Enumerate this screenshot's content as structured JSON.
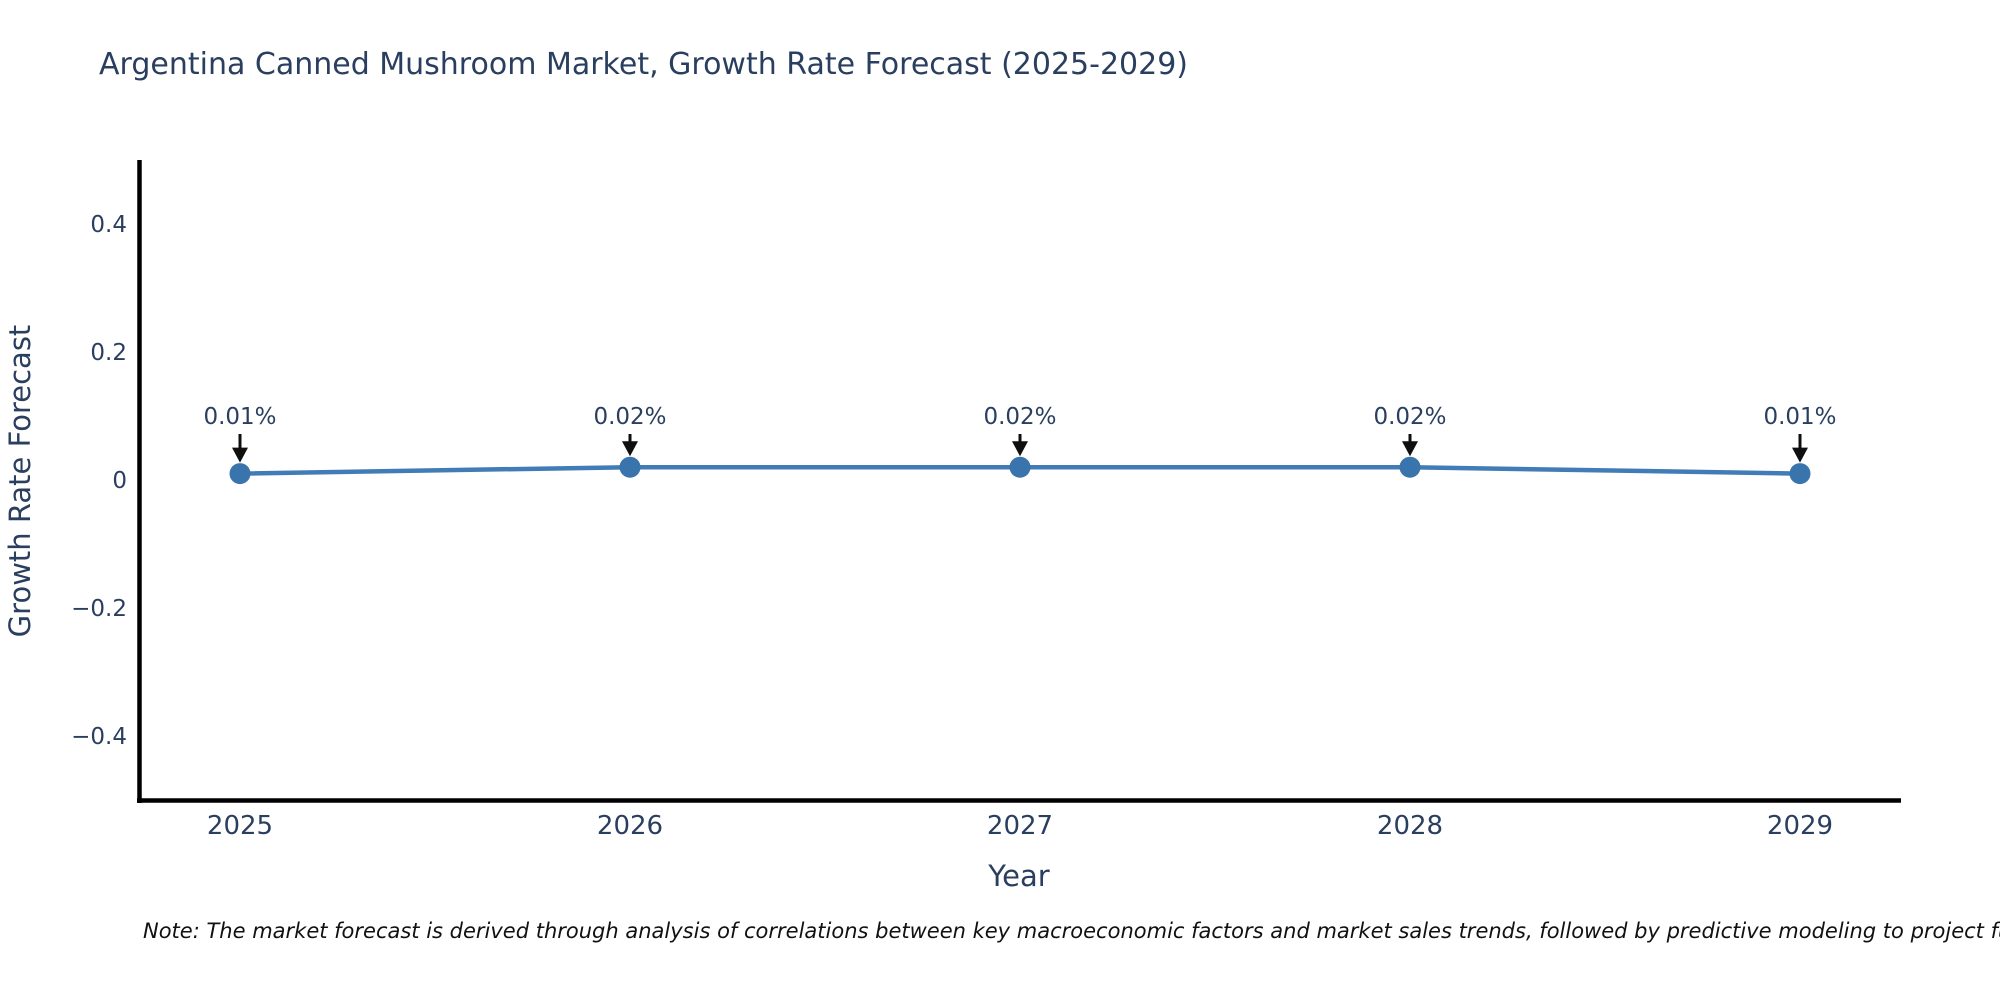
{
  "title": "Argentina Canned Mushroom Market, Growth Rate Forecast (2025-2029)",
  "note": "Note: The market forecast is derived through analysis of correlations between key macroeconomic factors and market sales trends, followed by predictive modeling to project future sales.",
  "chart_data": {
    "type": "line",
    "x": [
      2025,
      2026,
      2027,
      2028,
      2029
    ],
    "y": [
      0.01,
      0.02,
      0.02,
      0.02,
      0.01
    ],
    "point_labels": [
      "0.01%",
      "0.02%",
      "0.02%",
      "0.02%",
      "0.01%"
    ],
    "title": "Argentina Canned Mushroom Market, Growth Rate Forecast (2025-2029)",
    "xlabel": "Year",
    "ylabel": "Growth Rate Forecast",
    "xlim": [
      2024.74,
      2029.26
    ],
    "ylim": [
      -0.5,
      0.5
    ],
    "xticks": [
      2025,
      2026,
      2027,
      2028,
      2029
    ],
    "xtick_labels": [
      "2025",
      "2026",
      "2027",
      "2028",
      "2029"
    ],
    "yticks": [
      0.4,
      0.2,
      0,
      -0.2,
      -0.4
    ],
    "ytick_labels": [
      "0.4",
      "0.2",
      "0",
      "−0.2",
      "−0.4"
    ],
    "grid": false,
    "legend": false,
    "line_color": "#417cb7",
    "marker_color": "#3a74ad",
    "axis_color": "#000000",
    "tick_color": "#2a3f5f",
    "annotation_color": "#2a3f5f",
    "arrow_color": "#0f0f0f"
  }
}
